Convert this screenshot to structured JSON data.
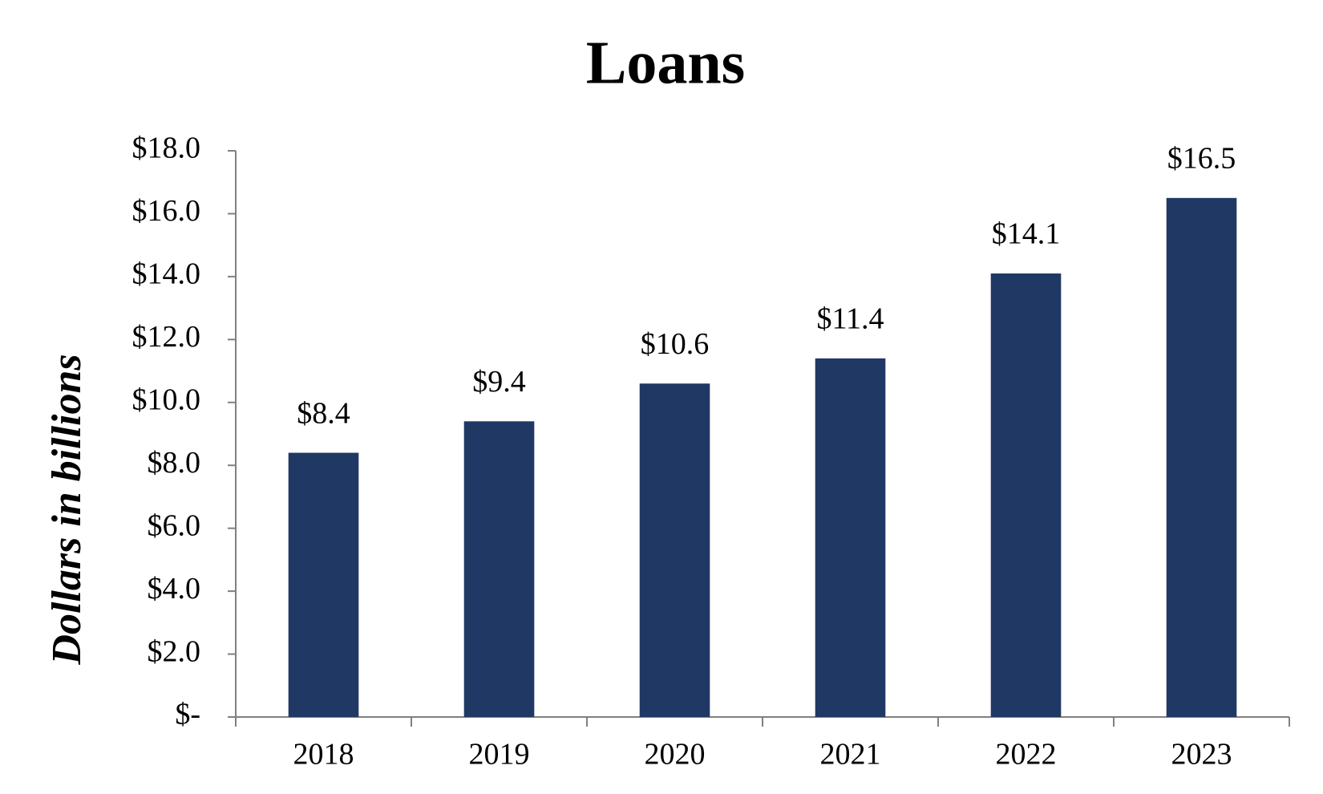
{
  "chart_data": {
    "type": "bar",
    "title": "Loans",
    "y_label": "Dollars in billions",
    "categories": [
      "2018",
      "2019",
      "2020",
      "2021",
      "2022",
      "2023"
    ],
    "values": [
      8.4,
      9.4,
      10.6,
      11.4,
      14.1,
      16.5
    ],
    "value_labels": [
      "$8.4",
      "$9.4",
      "$10.6",
      "$11.4",
      "$14.1",
      "$16.5"
    ],
    "color": "#203864",
    "ylim": [
      0,
      18
    ],
    "yticks": [
      {
        "value": 0,
        "label": "$-"
      },
      {
        "value": 2,
        "label": "$2.0"
      },
      {
        "value": 4,
        "label": "$4.0"
      },
      {
        "value": 6,
        "label": "$6.0"
      },
      {
        "value": 8,
        "label": "$8.0"
      },
      {
        "value": 10,
        "label": "$10.0"
      },
      {
        "value": 12,
        "label": "$12.0"
      },
      {
        "value": 14,
        "label": "$14.0"
      },
      {
        "value": 16,
        "label": "$16.0"
      },
      {
        "value": 18,
        "label": "$18.0"
      }
    ],
    "grid": false
  }
}
